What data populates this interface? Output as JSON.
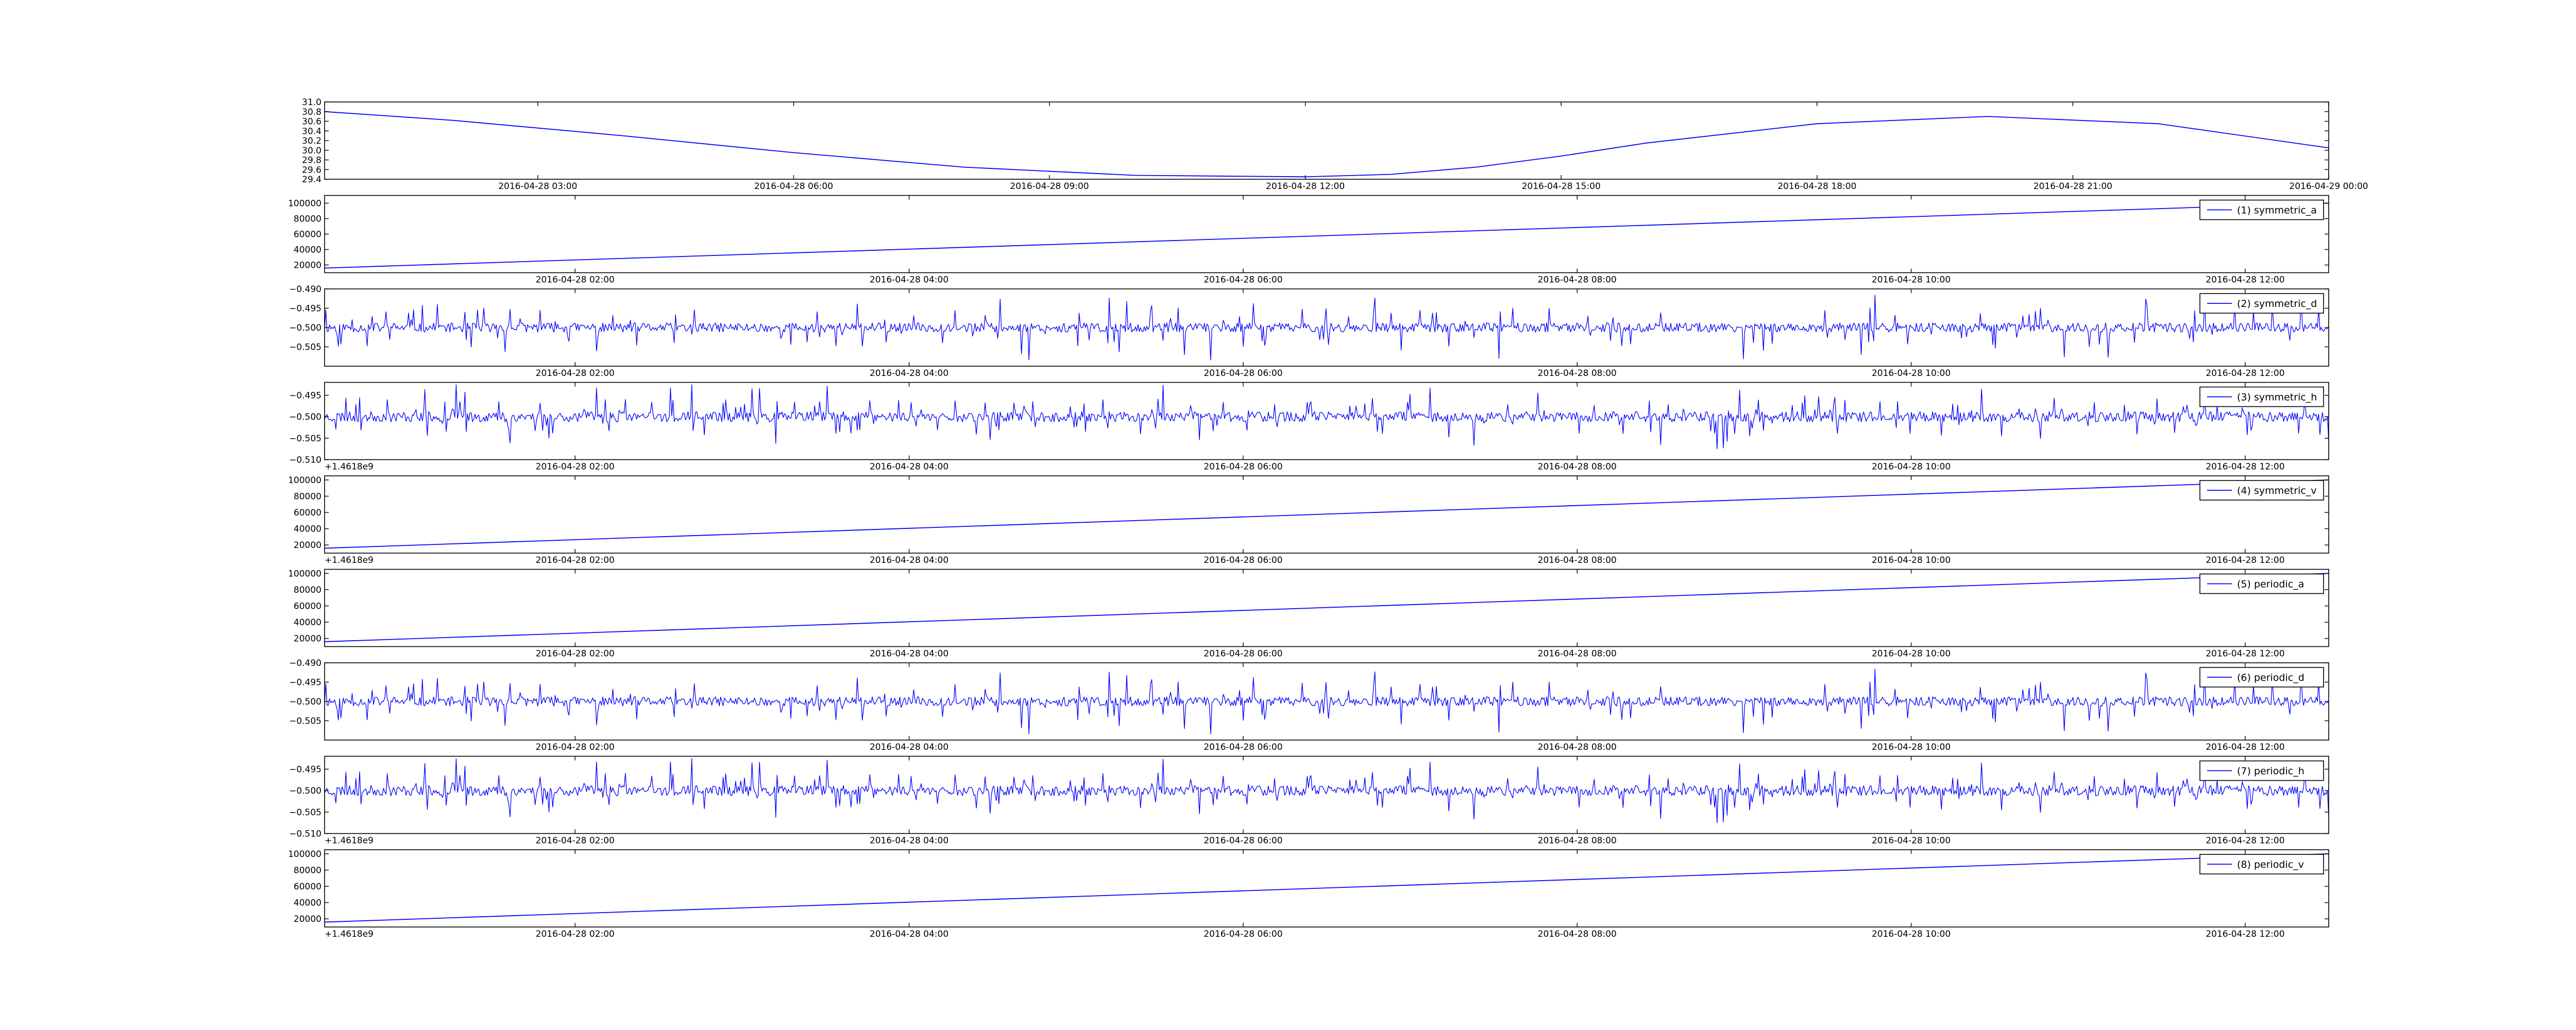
{
  "style": {
    "line_color": "#0000ff",
    "frame_color": "#000000",
    "background": "#ffffff"
  },
  "chart_data": [
    {
      "type": "line",
      "title": "",
      "xlabel": "",
      "ylabel": "",
      "legend": null,
      "y_offset_text": "",
      "grid": false,
      "xlim": [
        "2016-04-28 00:30",
        "2016-04-29 00:00"
      ],
      "ylim": [
        29.4,
        31.0
      ],
      "y_ticks": [
        "29.4",
        "29.6",
        "29.8",
        "30.0",
        "30.2",
        "30.4",
        "30.6",
        "30.8",
        "31.0"
      ],
      "x_ticks": [
        {
          "t": "2016-04-28 03:00",
          "label": "2016-04-28 03:00"
        },
        {
          "t": "2016-04-28 06:00",
          "label": "2016-04-28 06:00"
        },
        {
          "t": "2016-04-28 09:00",
          "label": "2016-04-28 09:00"
        },
        {
          "t": "2016-04-28 12:00",
          "label": "2016-04-28 12:00"
        },
        {
          "t": "2016-04-28 15:00",
          "label": "2016-04-28 15:00"
        },
        {
          "t": "2016-04-28 18:00",
          "label": "2016-04-28 18:00"
        },
        {
          "t": "2016-04-28 21:00",
          "label": "2016-04-28 21:00"
        },
        {
          "t": "2016-04-29 00:00",
          "label": "2016-04-29 00:00"
        }
      ],
      "series": [
        {
          "x": [
            "2016-04-28 00:30",
            "2016-04-28 02:00",
            "2016-04-28 04:00",
            "2016-04-28 06:00",
            "2016-04-28 08:00",
            "2016-04-28 10:00",
            "2016-04-28 12:00",
            "2016-04-28 13:00",
            "2016-04-28 14:00",
            "2016-04-28 15:00",
            "2016-04-28 16:00",
            "2016-04-28 18:00",
            "2016-04-28 20:00",
            "2016-04-28 22:00",
            "2016-04-29 00:00"
          ],
          "y": [
            30.8,
            30.62,
            30.3,
            29.95,
            29.65,
            29.48,
            29.45,
            29.5,
            29.65,
            29.88,
            30.15,
            30.55,
            30.7,
            30.55,
            30.05
          ]
        }
      ]
    },
    {
      "type": "line",
      "legend": {
        "label": "(1) symmetric_a",
        "loc": "upper right"
      },
      "y_offset_text": "",
      "grid": false,
      "xlim": [
        "2016-04-28 00:30",
        "2016-04-28 12:30"
      ],
      "ylim": [
        10000,
        110000
      ],
      "y_ticks": [
        "20000",
        "40000",
        "60000",
        "80000",
        "100000"
      ],
      "x_ticks": [
        {
          "t": "2016-04-28 02:00",
          "label": "2016-04-28 02:00"
        },
        {
          "t": "2016-04-28 04:00",
          "label": "2016-04-28 04:00"
        },
        {
          "t": "2016-04-28 06:00",
          "label": "2016-04-28 06:00"
        },
        {
          "t": "2016-04-28 08:00",
          "label": "2016-04-28 08:00"
        },
        {
          "t": "2016-04-28 10:00",
          "label": "2016-04-28 10:00"
        },
        {
          "t": "2016-04-28 12:00",
          "label": "2016-04-28 12:00"
        }
      ],
      "series": [
        {
          "x": [
            "2016-04-28 00:30",
            "2016-04-28 12:30"
          ],
          "y": [
            16000,
            100000
          ]
        }
      ]
    },
    {
      "type": "line",
      "legend": {
        "label": "(2) symmetric_d",
        "loc": "upper right"
      },
      "y_offset_text": "",
      "grid": false,
      "xlim": [
        "2016-04-28 00:30",
        "2016-04-28 12:30"
      ],
      "ylim": [
        -0.51,
        -0.49
      ],
      "y_ticks": [
        "−0.505",
        "−0.500",
        "−0.495",
        "−0.490"
      ],
      "x_ticks": [
        {
          "t": "2016-04-28 02:00",
          "label": "2016-04-28 02:00"
        },
        {
          "t": "2016-04-28 04:00",
          "label": "2016-04-28 04:00"
        },
        {
          "t": "2016-04-28 06:00",
          "label": "2016-04-28 06:00"
        },
        {
          "t": "2016-04-28 08:00",
          "label": "2016-04-28 08:00"
        },
        {
          "t": "2016-04-28 10:00",
          "label": "2016-04-28 10:00"
        },
        {
          "t": "2016-04-28 12:00",
          "label": "2016-04-28 12:00"
        }
      ],
      "series": [
        {
          "noise": {
            "center": -0.5,
            "base_amplitude": 0.0012,
            "spike_max": 0.0085,
            "samples": 1600,
            "seed": 11
          }
        }
      ]
    },
    {
      "type": "line",
      "legend": {
        "label": "(3) symmetric_h",
        "loc": "upper right"
      },
      "y_offset_text": "+1.4618e9",
      "grid": false,
      "xlim": [
        "2016-04-28 00:30",
        "2016-04-28 12:30"
      ],
      "ylim": [
        -0.51,
        -0.492
      ],
      "y_ticks": [
        "−0.510",
        "−0.505",
        "−0.500",
        "−0.495"
      ],
      "x_ticks": [
        {
          "t": "2016-04-28 02:00",
          "label": "2016-04-28 02:00"
        },
        {
          "t": "2016-04-28 04:00",
          "label": "2016-04-28 04:00"
        },
        {
          "t": "2016-04-28 06:00",
          "label": "2016-04-28 06:00"
        },
        {
          "t": "2016-04-28 08:00",
          "label": "2016-04-28 08:00"
        },
        {
          "t": "2016-04-28 10:00",
          "label": "2016-04-28 10:00"
        },
        {
          "t": "2016-04-28 12:00",
          "label": "2016-04-28 12:00"
        }
      ],
      "series": [
        {
          "noise": {
            "center": -0.5,
            "base_amplitude": 0.0012,
            "spike_max": 0.0075,
            "samples": 1600,
            "seed": 23
          }
        }
      ]
    },
    {
      "type": "line",
      "legend": {
        "label": "(4) symmetric_v",
        "loc": "upper right"
      },
      "y_offset_text": "+1.4618e9",
      "grid": false,
      "xlim": [
        "2016-04-28 00:30",
        "2016-04-28 12:30"
      ],
      "ylim": [
        10000,
        105000
      ],
      "y_ticks": [
        "20000",
        "40000",
        "60000",
        "80000",
        "100000"
      ],
      "x_ticks": [
        {
          "t": "2016-04-28 02:00",
          "label": "2016-04-28 02:00"
        },
        {
          "t": "2016-04-28 04:00",
          "label": "2016-04-28 04:00"
        },
        {
          "t": "2016-04-28 06:00",
          "label": "2016-04-28 06:00"
        },
        {
          "t": "2016-04-28 08:00",
          "label": "2016-04-28 08:00"
        },
        {
          "t": "2016-04-28 10:00",
          "label": "2016-04-28 10:00"
        },
        {
          "t": "2016-04-28 12:00",
          "label": "2016-04-28 12:00"
        }
      ],
      "series": [
        {
          "x": [
            "2016-04-28 00:30",
            "2016-04-28 12:30"
          ],
          "y": [
            16000,
            100000
          ]
        }
      ]
    },
    {
      "type": "line",
      "legend": {
        "label": "(5) periodic_a",
        "loc": "upper right"
      },
      "y_offset_text": "",
      "grid": false,
      "xlim": [
        "2016-04-28 00:30",
        "2016-04-28 12:30"
      ],
      "ylim": [
        10000,
        105000
      ],
      "y_ticks": [
        "20000",
        "40000",
        "60000",
        "80000",
        "100000"
      ],
      "x_ticks": [
        {
          "t": "2016-04-28 02:00",
          "label": "2016-04-28 02:00"
        },
        {
          "t": "2016-04-28 04:00",
          "label": "2016-04-28 04:00"
        },
        {
          "t": "2016-04-28 06:00",
          "label": "2016-04-28 06:00"
        },
        {
          "t": "2016-04-28 08:00",
          "label": "2016-04-28 08:00"
        },
        {
          "t": "2016-04-28 10:00",
          "label": "2016-04-28 10:00"
        },
        {
          "t": "2016-04-28 12:00",
          "label": "2016-04-28 12:00"
        }
      ],
      "series": [
        {
          "x": [
            "2016-04-28 00:30",
            "2016-04-28 12:30"
          ],
          "y": [
            16000,
            100000
          ]
        }
      ]
    },
    {
      "type": "line",
      "legend": {
        "label": "(6) periodic_d",
        "loc": "upper right"
      },
      "y_offset_text": "",
      "grid": false,
      "xlim": [
        "2016-04-28 00:30",
        "2016-04-28 12:30"
      ],
      "ylim": [
        -0.51,
        -0.49
      ],
      "y_ticks": [
        "−0.505",
        "−0.500",
        "−0.495",
        "−0.490"
      ],
      "x_ticks": [
        {
          "t": "2016-04-28 02:00",
          "label": "2016-04-28 02:00"
        },
        {
          "t": "2016-04-28 04:00",
          "label": "2016-04-28 04:00"
        },
        {
          "t": "2016-04-28 06:00",
          "label": "2016-04-28 06:00"
        },
        {
          "t": "2016-04-28 08:00",
          "label": "2016-04-28 08:00"
        },
        {
          "t": "2016-04-28 10:00",
          "label": "2016-04-28 10:00"
        },
        {
          "t": "2016-04-28 12:00",
          "label": "2016-04-28 12:00"
        }
      ],
      "series": [
        {
          "noise": {
            "center": -0.5,
            "base_amplitude": 0.0012,
            "spike_max": 0.0085,
            "samples": 1600,
            "seed": 11
          }
        }
      ]
    },
    {
      "type": "line",
      "legend": {
        "label": "(7) periodic_h",
        "loc": "upper right"
      },
      "y_offset_text": "+1.4618e9",
      "grid": false,
      "xlim": [
        "2016-04-28 00:30",
        "2016-04-28 12:30"
      ],
      "ylim": [
        -0.51,
        -0.492
      ],
      "y_ticks": [
        "−0.510",
        "−0.505",
        "−0.500",
        "−0.495"
      ],
      "x_ticks": [
        {
          "t": "2016-04-28 02:00",
          "label": "2016-04-28 02:00"
        },
        {
          "t": "2016-04-28 04:00",
          "label": "2016-04-28 04:00"
        },
        {
          "t": "2016-04-28 06:00",
          "label": "2016-04-28 06:00"
        },
        {
          "t": "2016-04-28 08:00",
          "label": "2016-04-28 08:00"
        },
        {
          "t": "2016-04-28 10:00",
          "label": "2016-04-28 10:00"
        },
        {
          "t": "2016-04-28 12:00",
          "label": "2016-04-28 12:00"
        }
      ],
      "series": [
        {
          "noise": {
            "center": -0.5,
            "base_amplitude": 0.0012,
            "spike_max": 0.0075,
            "samples": 1600,
            "seed": 23
          }
        }
      ]
    },
    {
      "type": "line",
      "legend": {
        "label": "(8) periodic_v",
        "loc": "upper right"
      },
      "y_offset_text": "+1.4618e9",
      "grid": false,
      "xlim": [
        "2016-04-28 00:30",
        "2016-04-28 12:30"
      ],
      "ylim": [
        10000,
        105000
      ],
      "y_ticks": [
        "20000",
        "40000",
        "60000",
        "80000",
        "100000"
      ],
      "x_ticks": [
        {
          "t": "2016-04-28 02:00",
          "label": "2016-04-28 02:00"
        },
        {
          "t": "2016-04-28 04:00",
          "label": "2016-04-28 04:00"
        },
        {
          "t": "2016-04-28 06:00",
          "label": "2016-04-28 06:00"
        },
        {
          "t": "2016-04-28 08:00",
          "label": "2016-04-28 08:00"
        },
        {
          "t": "2016-04-28 10:00",
          "label": "2016-04-28 10:00"
        },
        {
          "t": "2016-04-28 12:00",
          "label": "2016-04-28 12:00"
        }
      ],
      "series": [
        {
          "x": [
            "2016-04-28 00:30",
            "2016-04-28 12:30"
          ],
          "y": [
            16000,
            100000
          ]
        }
      ]
    }
  ]
}
